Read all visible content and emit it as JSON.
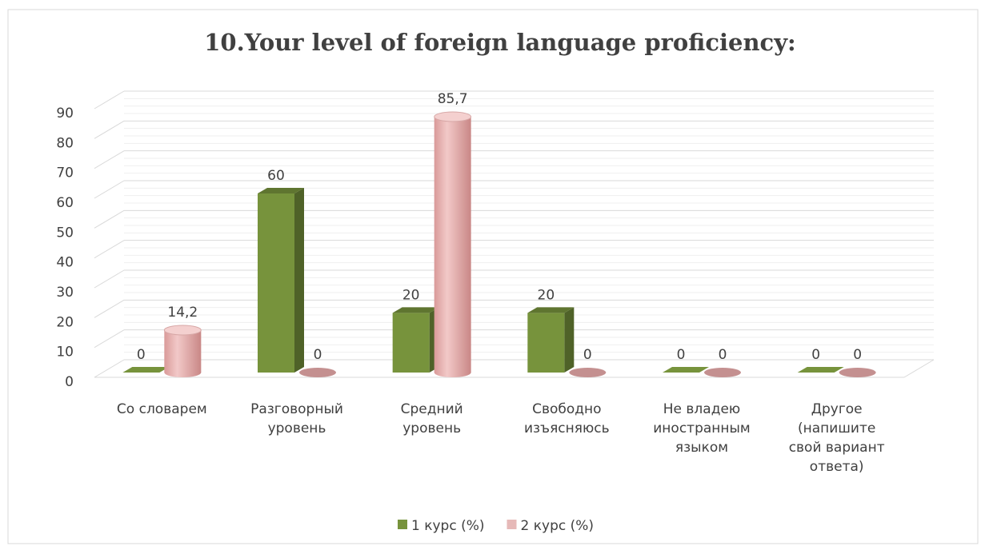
{
  "chart_data": {
    "type": "bar3d",
    "title": "10.Your level of foreign language proficiency:",
    "categories": [
      "Со словарем",
      "Разговорный\nуровень",
      "Средний\nуровень",
      "Свободно\nизъясняюсь",
      "Не владею\nиностранным\nязыком",
      "Другое\n(напишите\nсвой вариант\nответа)"
    ],
    "series": [
      {
        "name": "1 курс (%)",
        "color": "#77933c",
        "shape": "box",
        "values": [
          0,
          60,
          20,
          20,
          0,
          0
        ],
        "value_labels": [
          "0",
          "60",
          "20",
          "20",
          "0",
          "0"
        ]
      },
      {
        "name": "2 курс (%)",
        "color": "#e6b9b8",
        "shape": "cylinder",
        "values": [
          14.2,
          0,
          85.7,
          0,
          0,
          0
        ],
        "value_labels": [
          "14,2",
          "0",
          "85,7",
          "0",
          "0",
          "0"
        ]
      }
    ],
    "ylim": [
      0,
      90
    ],
    "yticks": [
      0,
      10,
      20,
      30,
      40,
      50,
      60,
      70,
      80,
      90
    ],
    "grid": true,
    "legend": "bottom"
  }
}
